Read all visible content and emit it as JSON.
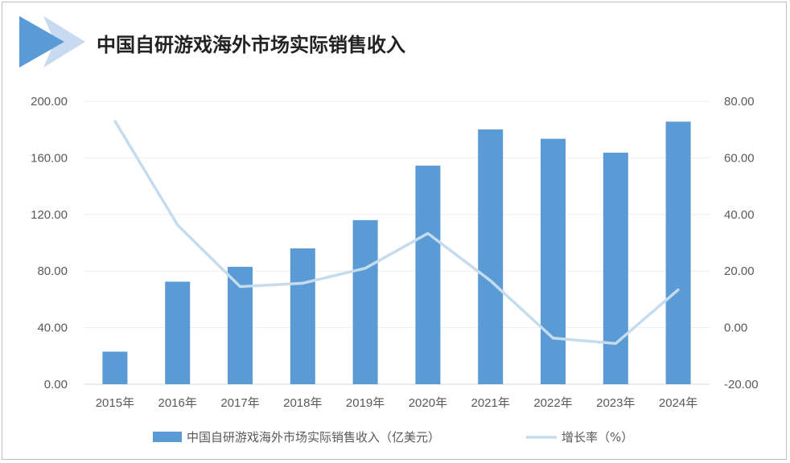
{
  "header": {
    "title": "中国自研游戏海外市场实际销售收入",
    "accent_color": "#5b9bd5",
    "accent_light": "#c7daf0"
  },
  "chart_data": {
    "type": "bar",
    "categories": [
      "2015年",
      "2016年",
      "2017年",
      "2018年",
      "2019年",
      "2020年",
      "2021年",
      "2022年",
      "2023年",
      "2024年"
    ],
    "series": [
      {
        "name": "中国自研游戏海外市场实际销售收入（亿美元）",
        "type": "bar",
        "axis": "left",
        "color": "#5b9bd5",
        "values": [
          23.0,
          72.5,
          83.0,
          96.0,
          116.0,
          154.5,
          180.1,
          173.5,
          163.7,
          185.6
        ]
      },
      {
        "name": "增长率（%）",
        "type": "line",
        "axis": "right",
        "color": "#c5dcee",
        "values": [
          73.0,
          36.3,
          14.5,
          15.7,
          21.0,
          33.3,
          16.6,
          -3.7,
          -5.6,
          13.4
        ]
      }
    ],
    "y_left": {
      "min": 0,
      "max": 200,
      "ticks": [
        "0.00",
        "40.00",
        "80.00",
        "120.00",
        "160.00",
        "200.00"
      ]
    },
    "y_right": {
      "min": -20,
      "max": 80,
      "ticks": [
        "-20.00",
        "0.00",
        "20.00",
        "40.00",
        "60.00",
        "80.00"
      ]
    },
    "grid": true,
    "legend_position": "bottom"
  }
}
